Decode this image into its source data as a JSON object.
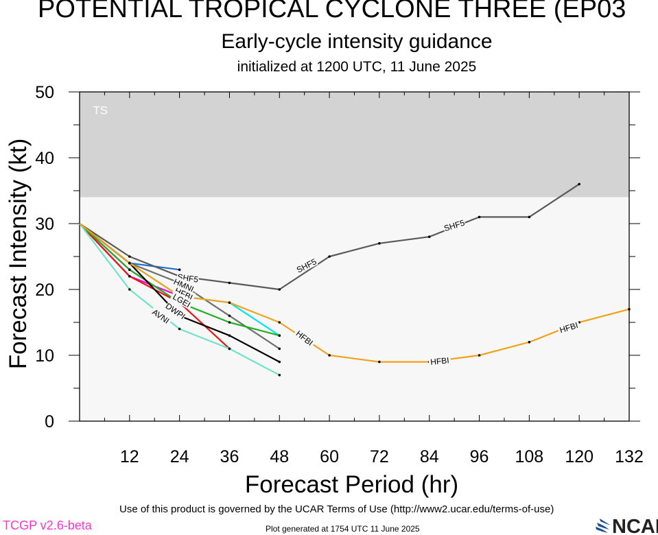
{
  "header": {
    "title": "POTENTIAL TROPICAL CYCLONE THREE (EP03",
    "subtitle": "Early-cycle intensity guidance",
    "initialized": "initialized at 1200 UTC, 11 June 2025"
  },
  "footer": {
    "terms": "Use of this product is governed by the UCAR Terms of Use (http://www2.ucar.edu/terms-of-use)",
    "version": "TCGP v2.6-beta",
    "generated": "Plot generated at 1754 UTC   11 June 2025",
    "logo_text": "NCAR"
  },
  "chart_data": {
    "type": "line",
    "xlabel": "Forecast Period (hr)",
    "ylabel": "Forecast Intensity (kt)",
    "xlim": [
      0,
      132
    ],
    "ylim": [
      0,
      50
    ],
    "xticks": [
      12,
      24,
      36,
      48,
      60,
      72,
      84,
      96,
      108,
      120,
      132
    ],
    "yticks": [
      0,
      10,
      20,
      30,
      40,
      50
    ],
    "bands": [
      {
        "label": "TS",
        "from": 34,
        "to": 50,
        "color": "#d3d3d3"
      },
      {
        "label": "",
        "from": 0,
        "to": 34,
        "color": "#f7f7f7"
      }
    ],
    "series": [
      {
        "name": "SHF5",
        "color": "#595959",
        "x": [
          0,
          12,
          24,
          36,
          48,
          60,
          72,
          84,
          96,
          108,
          120
        ],
        "y": [
          30,
          25,
          22,
          21,
          20,
          25,
          27,
          28,
          31,
          31,
          36
        ]
      },
      {
        "name": "HFBI",
        "color": "#f2a21a",
        "x": [
          0,
          12,
          24,
          36,
          48,
          60,
          72,
          84,
          96,
          108,
          120,
          132
        ],
        "y": [
          30,
          24,
          19,
          18,
          15,
          10,
          9,
          9,
          10,
          12,
          15,
          17
        ]
      },
      {
        "name": "HMNI",
        "color": "#6e6e6e",
        "x": [
          0,
          12,
          24,
          36,
          48
        ],
        "y": [
          30,
          24,
          21,
          16,
          11
        ]
      },
      {
        "name": "",
        "color": "#1f6fd1",
        "x": [
          0,
          12,
          24
        ],
        "y": [
          30,
          24,
          23
        ]
      },
      {
        "name": "",
        "color": "#00e5ee",
        "x": [
          0,
          12,
          24,
          36,
          48
        ],
        "y": [
          30,
          24,
          19,
          18,
          13
        ]
      },
      {
        "name": "",
        "color": "#22b022",
        "x": [
          0,
          12,
          24,
          36,
          48
        ],
        "y": [
          30,
          23,
          18,
          15,
          13
        ]
      },
      {
        "name": "",
        "color": "#ee1111",
        "x": [
          0,
          12,
          24,
          36
        ],
        "y": [
          30,
          22,
          18,
          11
        ]
      },
      {
        "name": "DWPI",
        "color": "#000000",
        "x": [
          0,
          12,
          24,
          36,
          48
        ],
        "y": [
          30,
          24,
          16,
          13,
          9
        ]
      },
      {
        "name": "AVNI",
        "color": "#6fe3c4",
        "x": [
          0,
          12,
          24,
          36,
          48
        ],
        "y": [
          30,
          20,
          14,
          11,
          7
        ]
      },
      {
        "name": "",
        "color": "#ff00dd",
        "x": [
          0,
          12,
          24
        ],
        "y": [
          30,
          22,
          19
        ]
      },
      {
        "name": "",
        "color": "#b000ff",
        "x": [
          0,
          12,
          24
        ],
        "y": [
          30,
          23,
          18
        ]
      }
    ],
    "line_labels": [
      {
        "text": "SHF5",
        "x": 26,
        "y": 21.7,
        "angle": 8
      },
      {
        "text": "SHF5",
        "x": 54.5,
        "y": 23.6,
        "angle": -27
      },
      {
        "text": "SHF5",
        "x": 90,
        "y": 29.7,
        "angle": -17
      },
      {
        "text": "HMNI",
        "x": 25,
        "y": 20.6,
        "angle": 24
      },
      {
        "text": "HFBI",
        "x": 25,
        "y": 19.3,
        "angle": 25
      },
      {
        "text": "LGEI",
        "x": 24.5,
        "y": 18.3,
        "angle": 30
      },
      {
        "text": "DWPI",
        "x": 23,
        "y": 16.7,
        "angle": 35
      },
      {
        "text": "AVNI",
        "x": 19.5,
        "y": 15.9,
        "angle": 35
      },
      {
        "text": "HFBI",
        "x": 54,
        "y": 12.6,
        "angle": 38
      },
      {
        "text": "HFBI",
        "x": 86.5,
        "y": 9.1,
        "angle": -6
      },
      {
        "text": "HFBI",
        "x": 117.5,
        "y": 14.2,
        "angle": -17
      }
    ]
  }
}
